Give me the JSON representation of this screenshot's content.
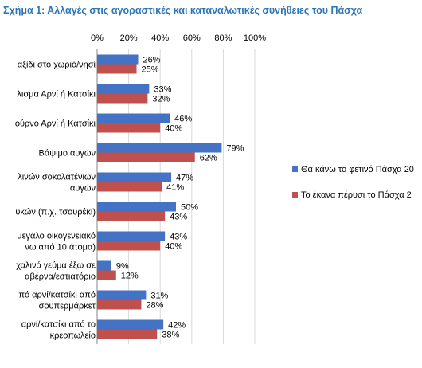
{
  "title": "Σχήμα 1: Αλλαγές στις αγοραστικές και καταναλωτικές συνήθειες του Πάσχα",
  "colors": {
    "series1": "#4472c4",
    "series2": "#c0504d",
    "title": "#2e75b6",
    "grid": "#d9d9d9"
  },
  "chart_data": {
    "type": "bar",
    "orientation": "horizontal",
    "categories": [
      [
        "αξίδι στο χωριό/νησί"
      ],
      [
        "λισμα Αρνί ή Κατσίκι"
      ],
      [
        "ούρνο Αρνί ή Κατσίκι"
      ],
      [
        "Βάψιμο αυγών"
      ],
      [
        "λινών σοκολατένιων",
        "αυγών"
      ],
      [
        "υκών (π.χ. τσουρέκι)"
      ],
      [
        "μεγάλο οικογενειακό",
        "νω από 10 άτομα)"
      ],
      [
        "χαλινό γεύμα έξω σε",
        "αβέρνα/εστιατόριο"
      ],
      [
        "πό αρνί/κατσίκι από",
        "σουπερμάρκετ"
      ],
      [
        "αρνί/κατσίκι από το",
        "κρεοπωλείο"
      ]
    ],
    "series": [
      {
        "name": "Θα κάνω το φετινό Πάσχα 20",
        "values": [
          26,
          33,
          46,
          79,
          47,
          50,
          43,
          9,
          31,
          42
        ]
      },
      {
        "name": "Το έκανα πέρυσι το Πάσχα 2",
        "values": [
          25,
          32,
          40,
          62,
          41,
          43,
          40,
          12,
          28,
          38
        ]
      }
    ],
    "x_ticks": [
      "0%",
      "20%",
      "40%",
      "60%",
      "80%",
      "100%"
    ],
    "xlim": [
      0,
      100
    ],
    "value_suffix": "%",
    "x_axis_position": "top",
    "legend_position": "right",
    "grid": true
  }
}
